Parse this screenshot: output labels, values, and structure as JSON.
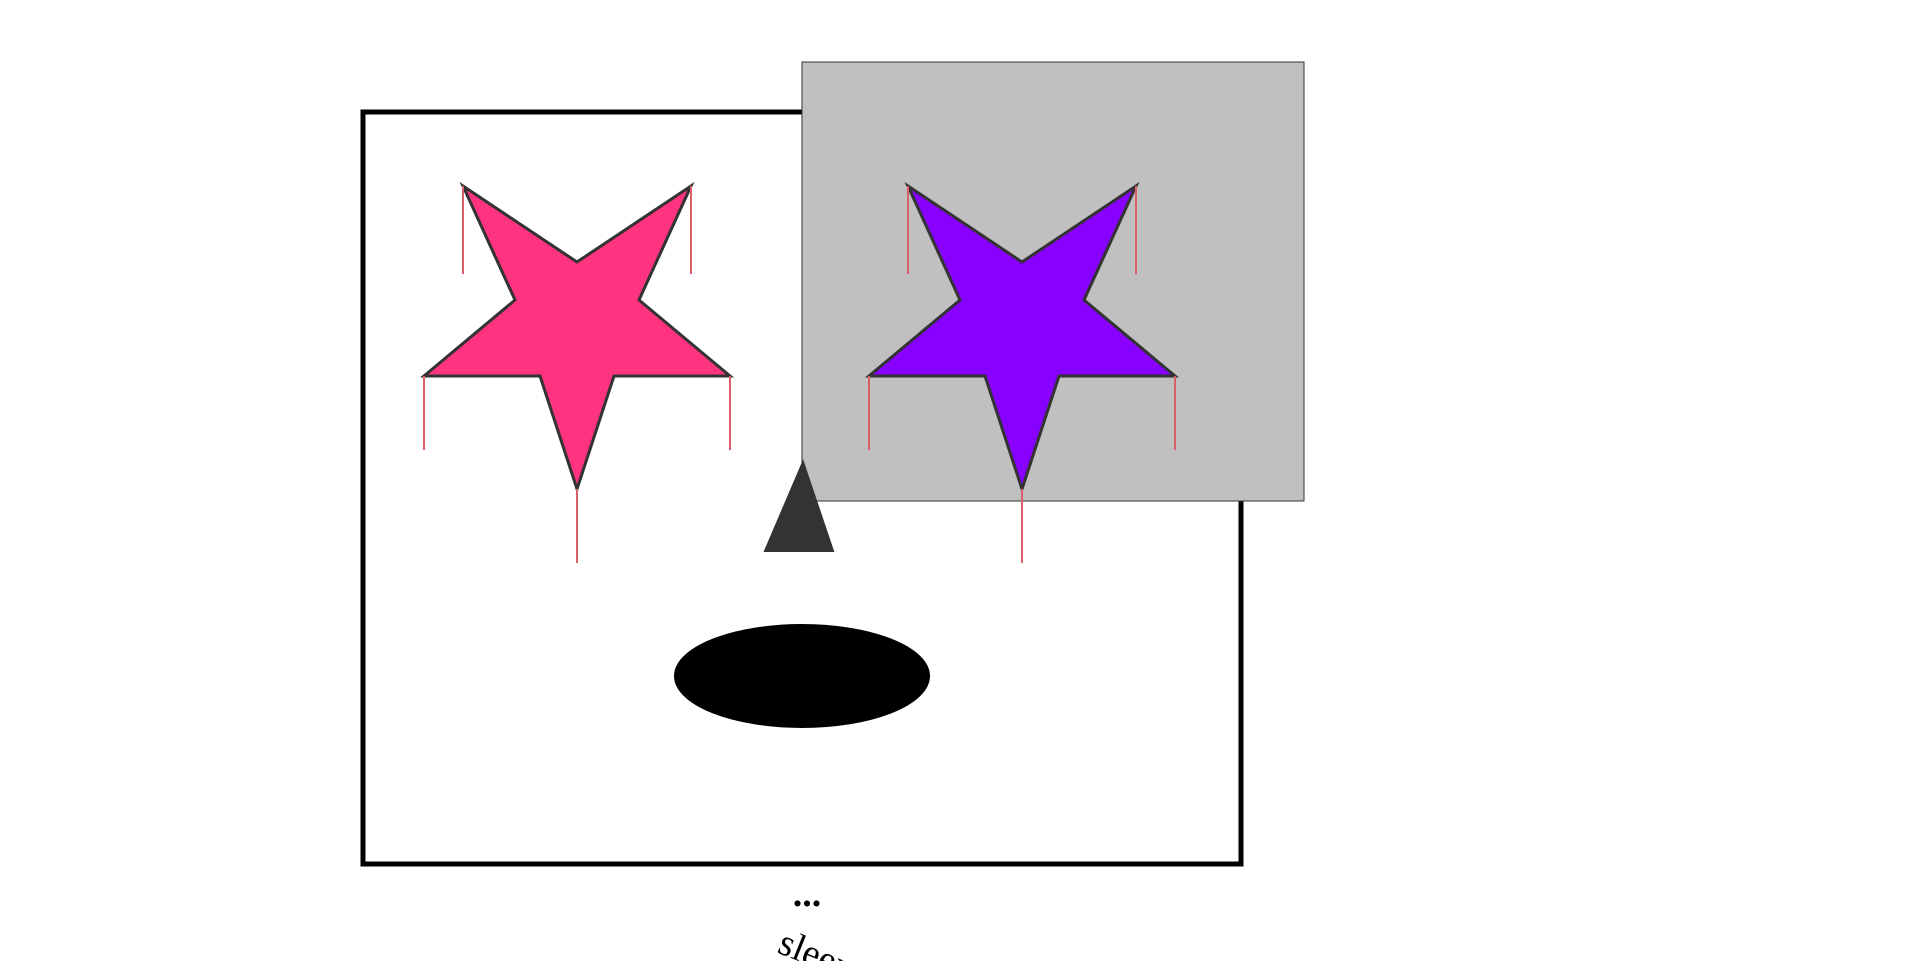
{
  "caption": {
    "dots": "...",
    "word": "sleep"
  },
  "colors": {
    "background": "#ffffff",
    "frame_stroke": "#000000",
    "overlay_fill": "#c0c0c0",
    "overlay_stroke": "#333333",
    "left_star_fill": "#ff3380",
    "right_star_fill": "#8800ff",
    "star_stroke": "#333333",
    "drip": "#d9606a",
    "nose_fill": "#333333",
    "mouth_fill": "#000000"
  },
  "shapes": {
    "frame": "square-frame",
    "overlay": "gray-square",
    "left_eye": "pink-star",
    "right_eye": "purple-star",
    "nose": "triangle",
    "mouth": "ellipse"
  }
}
